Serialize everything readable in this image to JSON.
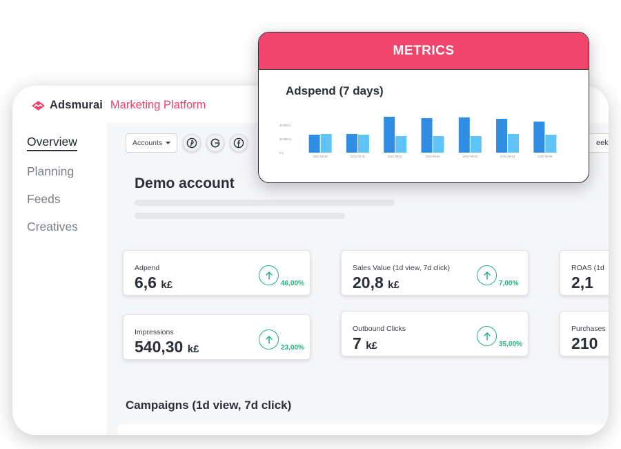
{
  "brand": {
    "name": "Adsmurai",
    "product": "Marketing Platform",
    "accent": "#ef3f6a"
  },
  "nav": {
    "items": [
      {
        "label": "Overview",
        "active": true
      },
      {
        "label": "Planning",
        "active": false
      },
      {
        "label": "Feeds",
        "active": false
      },
      {
        "label": "Creatives",
        "active": false
      }
    ]
  },
  "toolbar": {
    "accounts_label": "Accounts",
    "accounts_icon": "caret-down-icon",
    "socials": [
      "pinterest-icon",
      "google-icon",
      "facebook-icon"
    ],
    "period_label": "eek"
  },
  "account": {
    "title": "Demo account"
  },
  "kpis": [
    {
      "label": "Adpend",
      "value": "6,6",
      "unit": "k£",
      "trend": "up",
      "change": "46,00%"
    },
    {
      "label": "Sales Value (1d view, 7d click)",
      "value": "20,8",
      "unit": "k£",
      "trend": "up",
      "change": "7,00%"
    },
    {
      "label": "ROAS (1d",
      "value": "2,1",
      "unit": "",
      "trend": "",
      "change": ""
    },
    {
      "label": "Impressions",
      "value": "540,30",
      "unit": "k£",
      "trend": "up",
      "change": "23,00%"
    },
    {
      "label": "Outbound Clicks",
      "value": "7",
      "unit": "k£",
      "trend": "up",
      "change": "35,00%"
    },
    {
      "label": "Purchases",
      "value": "210",
      "unit": "",
      "trend": "",
      "change": ""
    }
  ],
  "campaigns": {
    "title": "Campaigns (1d view, 7d click)"
  },
  "metrics": {
    "header": "METRICS",
    "header_color": "#f2456b",
    "chart_title": "Adspend (7 days)"
  },
  "chart_data": {
    "type": "bar",
    "title": "Adspend (7 days)",
    "categories": [
      "2022-08-30",
      "2022-08-31",
      "2022-09-01",
      "2022-09-02",
      "2022-09-03",
      "2022-09-04",
      "2022-09-05"
    ],
    "series": [
      {
        "values": [
          26000,
          27000,
          52000,
          50000,
          51000,
          49000,
          45000
        ],
        "color": "#2f8de4"
      },
      {
        "values": [
          27000,
          26000,
          24000,
          24000,
          24000,
          27000,
          26000
        ],
        "color": "#5ec3f7"
      }
    ],
    "ytick_labels": [
      "40,000 £",
      "20,000 £",
      "0 £"
    ],
    "ytick_values": [
      40000,
      20000,
      0
    ],
    "ylim": [
      0,
      60000
    ],
    "grid": false,
    "legend": "none"
  }
}
